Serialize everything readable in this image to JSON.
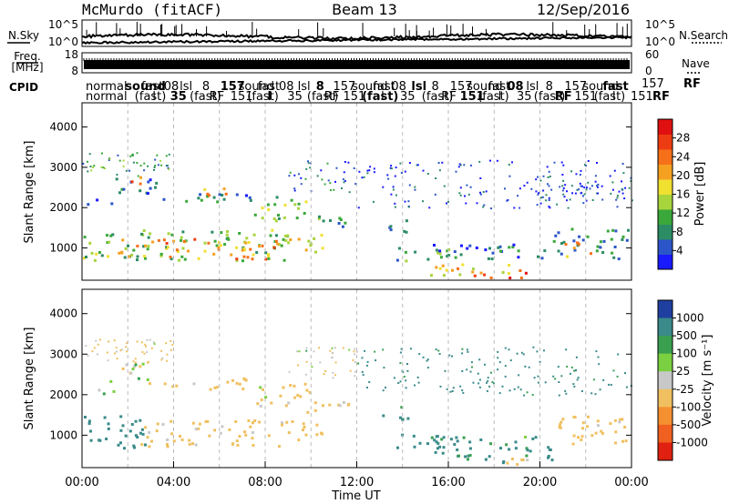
{
  "header": {
    "station": "McMurdo (fitACF)",
    "beam": "Beam 13",
    "date": "12/Sep/2016"
  },
  "strip": {
    "nsky_label": "N.Sky",
    "nsearch_label": "N.Search",
    "log_ticks": [
      "10^5",
      "10^0"
    ],
    "freq_label": "Freq.",
    "freq_unit": "[MHz]",
    "freq_ticks": [
      "18",
      "8"
    ],
    "nave_label": "Nave",
    "nave_ticks": [
      "60",
      "0"
    ],
    "cpid_label": "CPID",
    "cpid_right": [
      "157",
      "RF",
      "151",
      "RF"
    ],
    "cpid_first": [
      "normal",
      "normal"
    ],
    "cpid_tokens": [
      "sound",
      "(fast)",
      "fast",
      "l",
      "08",
      "35",
      "lsl",
      "(fast)",
      "8",
      "RF",
      "157",
      "151"
    ]
  },
  "chart_data": [
    {
      "type": "heatmap",
      "name": "power",
      "ylabel": "Slant Range [km]",
      "xlabel": "",
      "ylim": [
        200,
        4600
      ],
      "yticks": [
        1000,
        2000,
        3000,
        4000
      ],
      "colorbar": {
        "label": "Power [dB]",
        "range": [
          0,
          32
        ],
        "ticks": [
          4,
          8,
          12,
          16,
          20,
          24,
          28
        ],
        "colors": [
          "#1a1aff",
          "#2b55c8",
          "#2c8c64",
          "#3aa83a",
          "#a8d43c",
          "#f0e030",
          "#f5a020",
          "#f57018",
          "#ee3c12",
          "#e01010"
        ]
      },
      "regions": [
        {
          "x": [
            1.1,
            3.2
          ],
          "y": [
            2300,
            2800
          ],
          "v": 6
        },
        {
          "x": [
            2.0,
            2.6
          ],
          "y": [
            2500,
            2900
          ],
          "v": 24
        },
        {
          "x": [
            3.5,
            7.5
          ],
          "y": [
            2150,
            2450
          ],
          "v": 8
        },
        {
          "x": [
            5.2,
            6.4
          ],
          "y": [
            2200,
            2500
          ],
          "v": 22
        },
        {
          "x": [
            0.2,
            1.5
          ],
          "y": [
            2050,
            2250
          ],
          "v": 4
        },
        {
          "x": [
            7.5,
            10.2
          ],
          "y": [
            1700,
            2300
          ],
          "v": 12
        },
        {
          "x": [
            9.8,
            11.8
          ],
          "y": [
            1550,
            1900
          ],
          "v": 10
        },
        {
          "x": [
            0.0,
            9.0
          ],
          "y": [
            700,
            1500
          ],
          "v": 12
        },
        {
          "x": [
            1.5,
            8.5
          ],
          "y": [
            750,
            1250
          ],
          "v": 22
        },
        {
          "x": [
            8.8,
            10.6
          ],
          "y": [
            900,
            1400
          ],
          "v": 16
        },
        {
          "x": [
            13.0,
            14.2
          ],
          "y": [
            1400,
            1800
          ],
          "v": 5
        },
        {
          "x": [
            13.5,
            16.2
          ],
          "y": [
            700,
            1050
          ],
          "v": 10
        },
        {
          "x": [
            15.0,
            20.5
          ],
          "y": [
            750,
            1150
          ],
          "v": 7
        },
        {
          "x": [
            15.2,
            19.8
          ],
          "y": [
            350,
            650
          ],
          "v": 18
        },
        {
          "x": [
            17.0,
            19.5
          ],
          "y": [
            250,
            450
          ],
          "v": 28
        },
        {
          "x": [
            20.5,
            23.9
          ],
          "y": [
            750,
            1500
          ],
          "v": 8
        },
        {
          "x": [
            21.0,
            22.2
          ],
          "y": [
            800,
            1300
          ],
          "v": 22
        }
      ],
      "sparse": [
        {
          "x": [
            0.0,
            4.0
          ],
          "y": [
            2800,
            3400
          ],
          "v": 10
        },
        {
          "x": [
            9.0,
            12.0
          ],
          "y": [
            2400,
            3200
          ],
          "v": 6
        },
        {
          "x": [
            12.0,
            24.0
          ],
          "y": [
            2000,
            3200
          ],
          "v": 4
        },
        {
          "x": [
            19.8,
            23.8
          ],
          "y": [
            2200,
            2700
          ],
          "v": 5
        }
      ]
    },
    {
      "type": "heatmap",
      "name": "velocity",
      "ylabel": "Slant Range [km]",
      "xlabel": "Time UT",
      "ylim": [
        200,
        4600
      ],
      "yticks": [
        1000,
        2000,
        3000,
        4000
      ],
      "xlim": [
        0,
        24
      ],
      "xticks": [
        "00:00",
        "04:00",
        "08:00",
        "12:00",
        "16:00",
        "20:00",
        "00:00"
      ],
      "colorbar": {
        "label": "Velocity [m s⁻¹]",
        "labels": [
          "1000",
          "500",
          "100",
          "25",
          "-25",
          "-100",
          "-500",
          "-1000"
        ],
        "colors": [
          "#1f3fa0",
          "#3a8a8a",
          "#3aa050",
          "#7ad040",
          "#c8c8c8",
          "#f0c060",
          "#f59030",
          "#f06020",
          "#e02010"
        ]
      },
      "regions": [
        {
          "x": [
            1.1,
            3.2
          ],
          "y": [
            2300,
            2800
          ],
          "v": -60
        },
        {
          "x": [
            3.5,
            7.5
          ],
          "y": [
            2150,
            2450
          ],
          "v": -200
        },
        {
          "x": [
            0.2,
            1.5
          ],
          "y": [
            2050,
            2250
          ],
          "v": 0
        },
        {
          "x": [
            7.5,
            10.2
          ],
          "y": [
            1700,
            2300
          ],
          "v": -150
        },
        {
          "x": [
            9.8,
            11.8
          ],
          "y": [
            1550,
            1900
          ],
          "v": -150
        },
        {
          "x": [
            0.0,
            3.0
          ],
          "y": [
            700,
            1500
          ],
          "v": 300
        },
        {
          "x": [
            2.5,
            9.0
          ],
          "y": [
            750,
            1400
          ],
          "v": -200
        },
        {
          "x": [
            8.8,
            10.6
          ],
          "y": [
            900,
            1400
          ],
          "v": -200
        },
        {
          "x": [
            13.0,
            14.2
          ],
          "y": [
            1400,
            1800
          ],
          "v": 200
        },
        {
          "x": [
            13.5,
            16.2
          ],
          "y": [
            700,
            1050
          ],
          "v": 200
        },
        {
          "x": [
            15.0,
            20.5
          ],
          "y": [
            350,
            1000
          ],
          "v": 150
        },
        {
          "x": [
            17.0,
            19.5
          ],
          "y": [
            250,
            450
          ],
          "v": -150
        },
        {
          "x": [
            20.5,
            23.9
          ],
          "y": [
            750,
            1500
          ],
          "v": -200
        }
      ],
      "sparse": [
        {
          "x": [
            0.0,
            4.0
          ],
          "y": [
            2800,
            3400
          ],
          "v": -150
        },
        {
          "x": [
            9.0,
            12.0
          ],
          "y": [
            2400,
            3200
          ],
          "v": -100
        },
        {
          "x": [
            12.0,
            24.0
          ],
          "y": [
            2000,
            3200
          ],
          "v": 200
        }
      ]
    }
  ]
}
